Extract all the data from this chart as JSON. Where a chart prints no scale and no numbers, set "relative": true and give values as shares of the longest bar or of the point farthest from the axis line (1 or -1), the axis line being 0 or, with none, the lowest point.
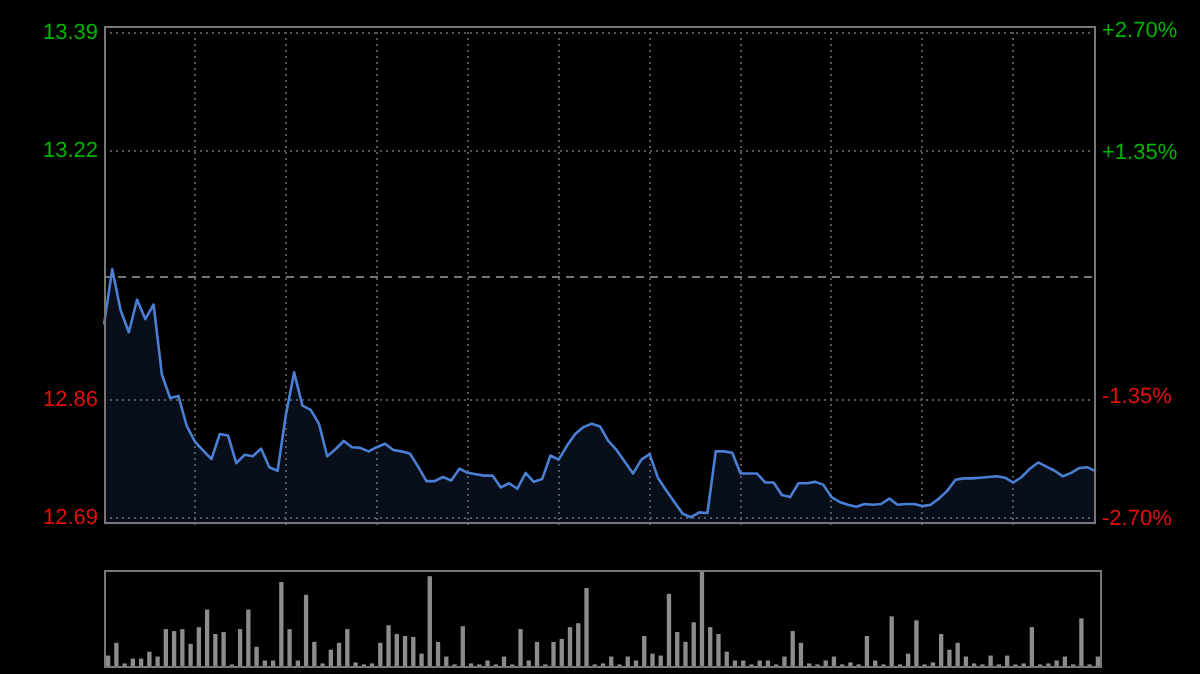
{
  "chart_data": [
    {
      "type": "area",
      "color": "#4a7fd4",
      "categories": [
        null,
        null,
        null,
        null,
        null,
        null,
        null,
        null,
        null,
        null,
        null,
        null,
        null,
        null,
        null,
        null,
        null,
        null,
        null,
        null,
        null,
        null,
        null,
        null,
        null,
        null,
        null,
        null,
        null,
        null,
        null,
        null,
        null,
        null,
        null,
        null,
        null,
        null,
        null,
        null,
        null,
        null,
        null,
        null,
        null,
        null,
        null,
        null,
        null,
        null,
        null,
        null,
        null,
        null,
        null,
        null,
        null,
        null,
        null,
        null,
        null,
        null,
        null,
        null,
        null,
        null,
        null,
        null,
        null,
        null,
        null,
        null,
        null,
        null,
        null,
        null,
        null,
        null,
        null,
        null,
        null,
        null,
        null,
        null,
        null,
        null,
        null,
        null,
        null,
        null,
        null,
        null,
        null,
        null,
        null,
        null,
        null,
        null,
        null,
        null,
        null,
        null,
        null,
        null,
        null,
        null,
        null,
        null,
        null,
        null,
        null,
        null,
        null,
        null,
        null,
        null,
        null,
        null,
        null,
        null,
        null
      ],
      "values": [
        12.969,
        13.049,
        12.99,
        12.958,
        13.005,
        12.977,
        12.998,
        12.897,
        12.863,
        12.866,
        12.823,
        12.8,
        12.787,
        12.775,
        12.811,
        12.809,
        12.769,
        12.781,
        12.779,
        12.79,
        12.763,
        12.758,
        12.839,
        12.9,
        12.852,
        12.846,
        12.826,
        12.779,
        12.789,
        12.801,
        12.792,
        12.791,
        12.786,
        12.792,
        12.797,
        12.788,
        12.786,
        12.783,
        12.764,
        12.743,
        12.743,
        12.749,
        12.744,
        12.761,
        12.755,
        12.753,
        12.751,
        12.751,
        12.734,
        12.74,
        12.732,
        12.755,
        12.742,
        12.746,
        12.78,
        12.774,
        12.794,
        12.811,
        12.821,
        12.826,
        12.822,
        12.801,
        12.788,
        12.771,
        12.754,
        12.774,
        12.782,
        12.748,
        12.73,
        12.713,
        12.696,
        12.691,
        12.698,
        12.697,
        12.786,
        12.786,
        12.784,
        12.754,
        12.754,
        12.754,
        12.741,
        12.741,
        12.723,
        12.72,
        12.74,
        12.74,
        12.742,
        12.738,
        12.72,
        12.713,
        12.709,
        12.706,
        12.71,
        12.709,
        12.71,
        12.718,
        12.709,
        12.71,
        12.71,
        12.707,
        12.709,
        12.718,
        12.729,
        12.745,
        12.747,
        12.747,
        12.748,
        12.749,
        12.75,
        12.748,
        12.741,
        12.749,
        12.761,
        12.77,
        12.764,
        12.758,
        12.75,
        12.755,
        12.762,
        12.763,
        12.757
      ],
      "ylim": [
        12.68,
        13.4
      ],
      "yticks": [
        {
          "value": 13.39,
          "label": "13.39"
        },
        {
          "value": 13.22,
          "label": "13.22"
        },
        {
          "value": 12.86,
          "label": "12.86"
        },
        {
          "value": 12.69,
          "label": "12.69"
        }
      ],
      "y2lim": [
        -2.76,
        2.76
      ],
      "y2ticks": [
        {
          "value": 2.7,
          "label": "+2.70%"
        },
        {
          "value": 1.35,
          "label": "+1.35%"
        },
        {
          "value": -1.35,
          "label": "-1.35%"
        },
        {
          "value": -2.7,
          "label": "-2.70%"
        }
      ],
      "ref_lines": [
        {
          "axis": "y",
          "value": 13.04,
          "line_style": "dashed",
          "color": "#777777"
        }
      ],
      "grid": true,
      "legend": false
    },
    {
      "type": "bar",
      "relative": true,
      "color": "#8c8c8c",
      "legend": false,
      "categories": [
        null,
        null,
        null,
        null,
        null,
        null,
        null,
        null,
        null,
        null,
        null,
        null,
        null,
        null,
        null,
        null,
        null,
        null,
        null,
        null,
        null,
        null,
        null,
        null,
        null,
        null,
        null,
        null,
        null,
        null,
        null,
        null,
        null,
        null,
        null,
        null,
        null,
        null,
        null,
        null,
        null,
        null,
        null,
        null,
        null,
        null,
        null,
        null,
        null,
        null,
        null,
        null,
        null,
        null,
        null,
        null,
        null,
        null,
        null,
        null,
        null,
        null,
        null,
        null,
        null,
        null,
        null,
        null,
        null,
        null,
        null,
        null,
        null,
        null,
        null,
        null,
        null,
        null,
        null,
        null,
        null,
        null,
        null,
        null,
        null,
        null,
        null,
        null,
        null,
        null,
        null,
        null,
        null,
        null,
        null,
        null,
        null,
        null,
        null,
        null,
        null,
        null,
        null,
        null,
        null,
        null,
        null,
        null,
        null,
        null,
        null,
        null,
        null,
        null,
        null,
        null,
        null,
        null,
        null,
        null,
        null
      ],
      "values": [
        0.12,
        0.25,
        0.04,
        0.09,
        0.09,
        0.16,
        0.11,
        0.39,
        0.37,
        0.39,
        0.24,
        0.41,
        0.59,
        0.34,
        0.36,
        0.03,
        0.39,
        0.59,
        0.21,
        0.07,
        0.07,
        0.87,
        0.39,
        0.07,
        0.74,
        0.26,
        0.04,
        0.18,
        0.25,
        0.39,
        0.05,
        0.03,
        0.04,
        0.25,
        0.43,
        0.34,
        0.32,
        0.31,
        0.14,
        0.93,
        0.26,
        0.11,
        0.03,
        0.42,
        0.04,
        0.03,
        0.07,
        0.03,
        0.11,
        0.03,
        0.39,
        0.07,
        0.26,
        0.03,
        0.26,
        0.29,
        0.41,
        0.45,
        0.81,
        0.03,
        0.04,
        0.11,
        0.03,
        0.11,
        0.07,
        0.32,
        0.14,
        0.12,
        0.75,
        0.36,
        0.26,
        0.46,
        1,
        0.41,
        0.34,
        0.16,
        0.07,
        0.07,
        0.03,
        0.07,
        0.07,
        0.03,
        0.11,
        0.37,
        0.25,
        0.04,
        0.03,
        0.07,
        0.11,
        0.03,
        0.05,
        0.03,
        0.32,
        0.07,
        0.03,
        0.52,
        0.03,
        0.14,
        0.48,
        0.03,
        0.05,
        0.34,
        0.18,
        0.25,
        0.11,
        0.04,
        0.03,
        0.12,
        0.03,
        0.12,
        0.03,
        0.04,
        0.41,
        0.03,
        0.04,
        0.07,
        0.11,
        0.03,
        0.5,
        0.03,
        0.11
      ]
    }
  ]
}
